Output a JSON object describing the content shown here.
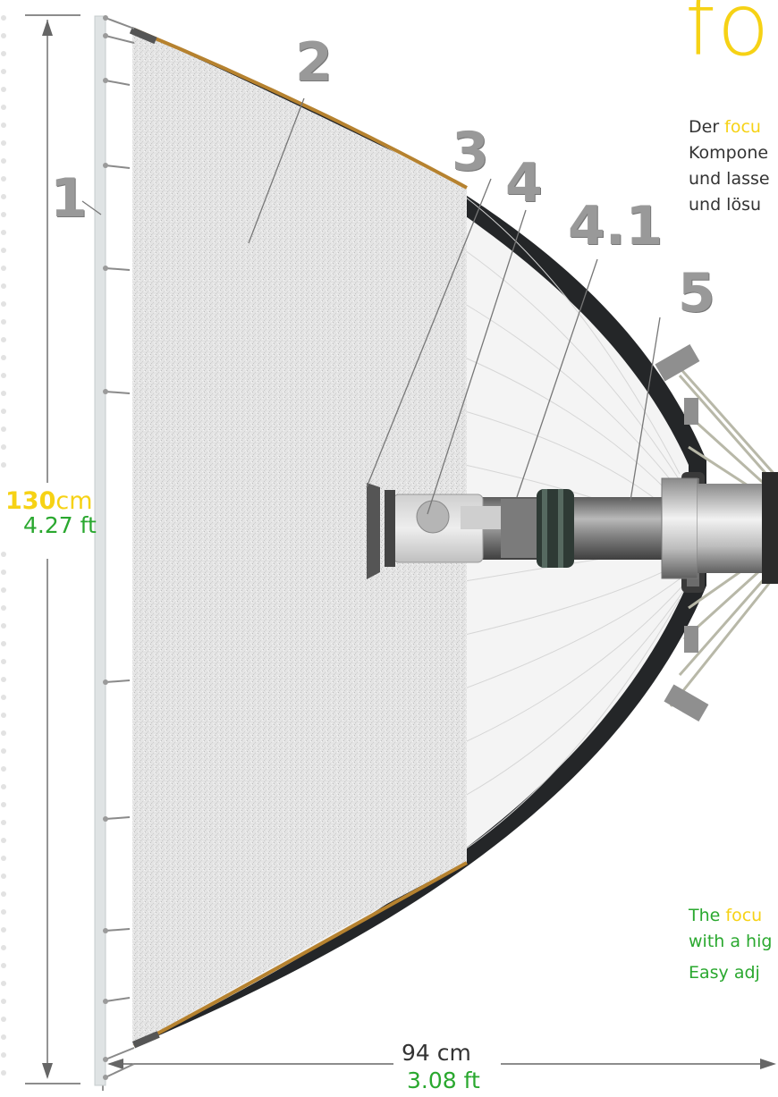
{
  "title": "fo",
  "description_de": {
    "line1_prefix": "Der ",
    "line1_highlight": "focu",
    "line2": "Kompone",
    "line3": "und lasse",
    "line4": "und lösu"
  },
  "description_en": {
    "line1_prefix": "The ",
    "line1_highlight": "focu",
    "line2": "with a hig",
    "line3": "Easy adj"
  },
  "callouts": [
    "1",
    "2",
    "3",
    "4",
    "4.1",
    "5"
  ],
  "dimensions": {
    "height_value": "130",
    "height_unit": "cm",
    "height_imperial": "4.27 ft",
    "width_metric": "94 cm",
    "width_imperial": "3.08 ft"
  },
  "colors": {
    "accent_yellow": "#f6d215",
    "accent_green": "#2aa82f",
    "rim_orange": "#b6822f",
    "callout_gray": "#999999"
  }
}
